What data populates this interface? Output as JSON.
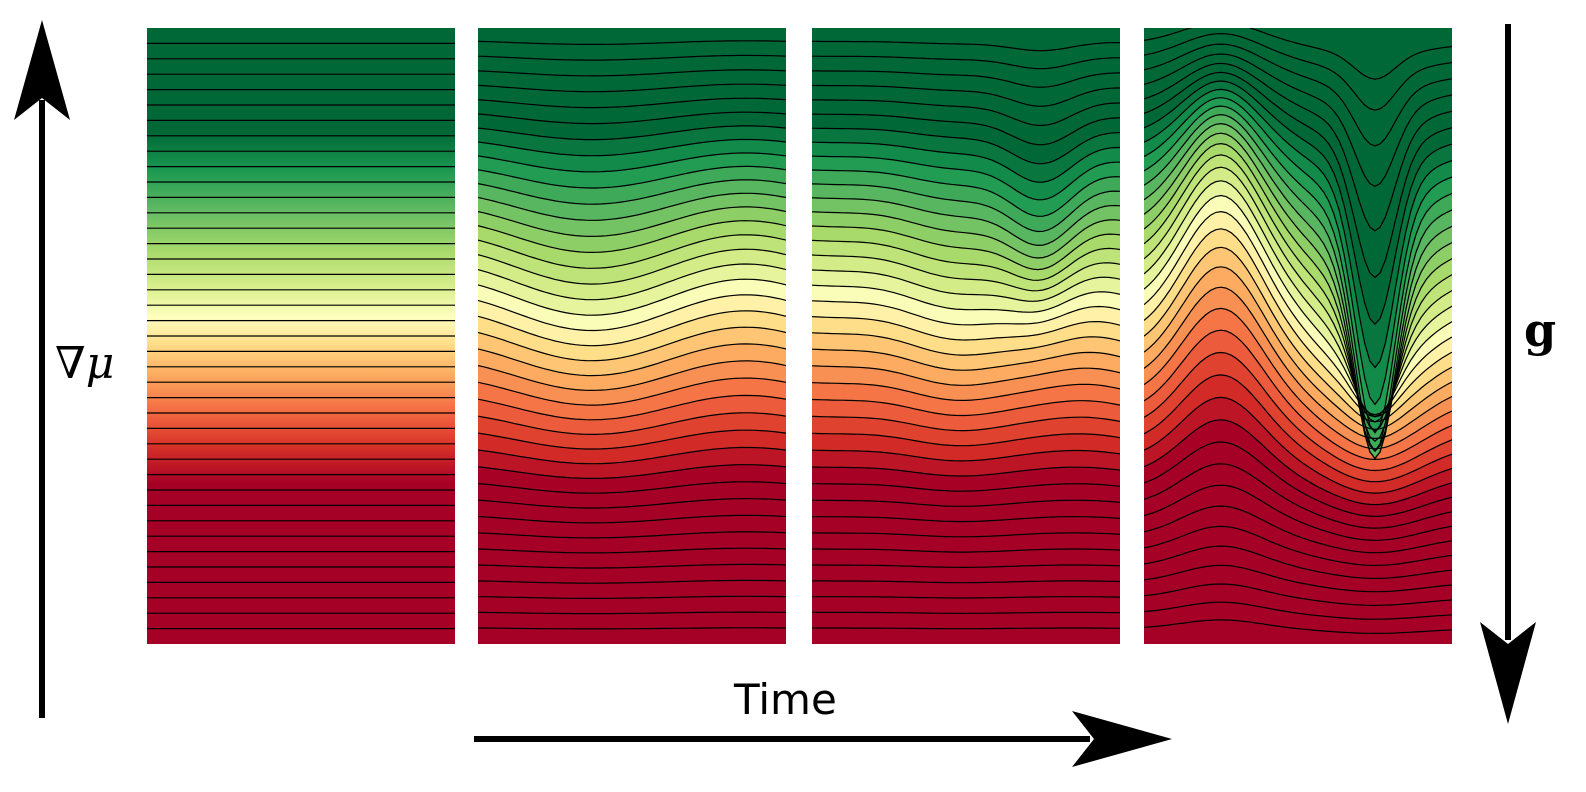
{
  "figure": {
    "labels": {
      "gradient": "∇μ",
      "gravity": "g",
      "time": "Time"
    },
    "panels": [
      {
        "id": "t0",
        "perturbation": 0.0
      },
      {
        "id": "t1",
        "perturbation": 0.35
      },
      {
        "id": "t2",
        "perturbation": 0.65
      },
      {
        "id": "t3",
        "perturbation": 1.0
      }
    ],
    "colormap": [
      "#a50026",
      "#d73027",
      "#f46d43",
      "#fdae61",
      "#fee08b",
      "#ffffbf",
      "#d9ef8b",
      "#a6d96a",
      "#66bd63",
      "#1a9850",
      "#006837"
    ],
    "contour_color": "#000000",
    "arrow_color": "#000000"
  }
}
